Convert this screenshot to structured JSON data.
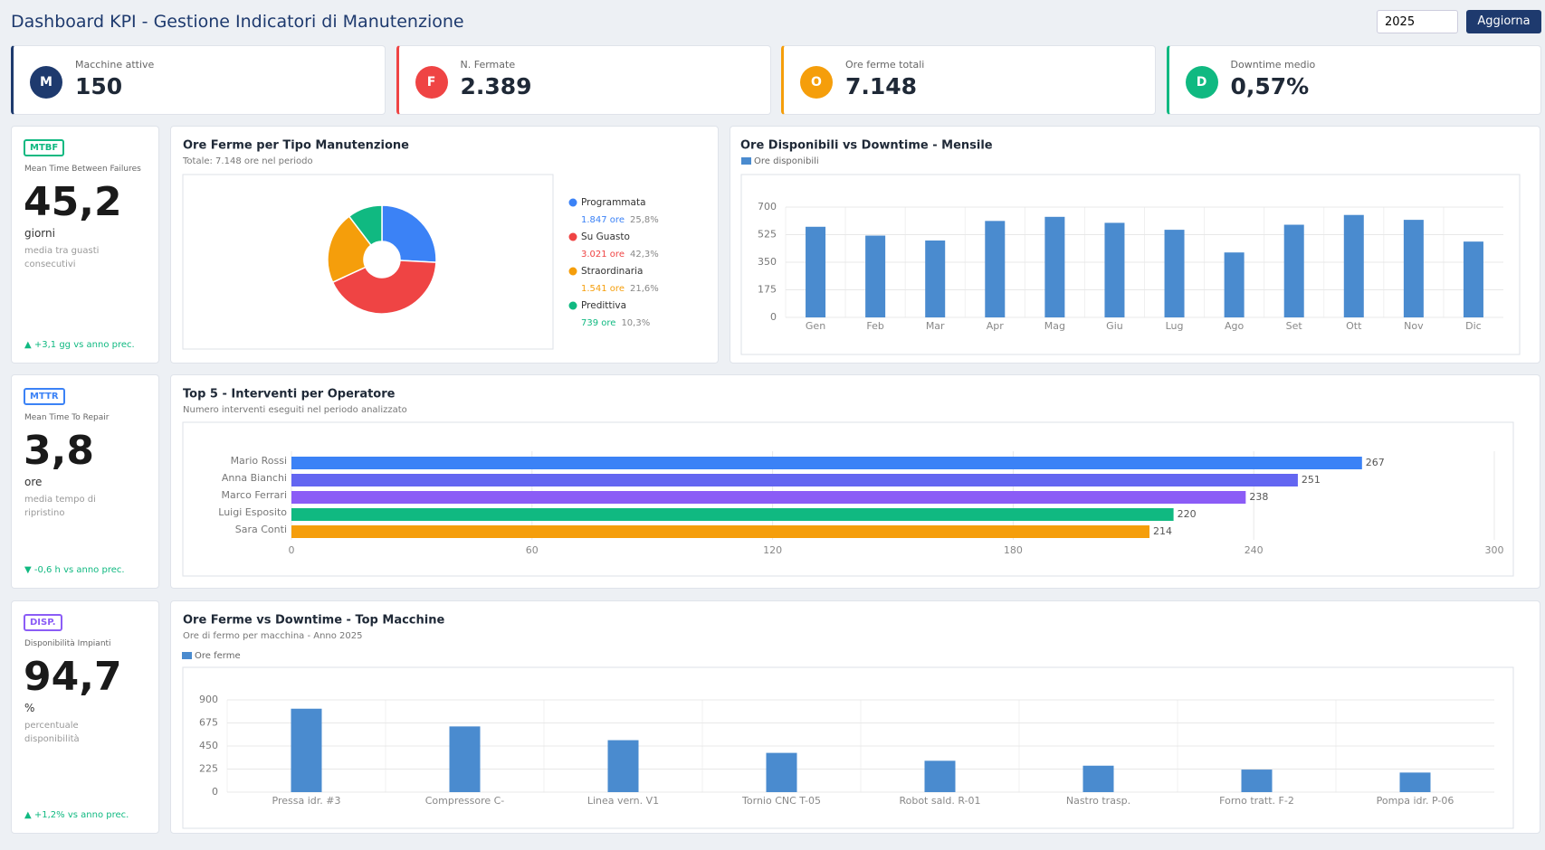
{
  "header": {
    "title": "Dashboard KPI - Gestione Indicatori di Manutenzione",
    "year": "2025",
    "button": "Aggiorna"
  },
  "kpis": [
    {
      "icon": "M",
      "label": "Macchine attive",
      "value": "150",
      "color": "#1e3a6e"
    },
    {
      "icon": "F",
      "label": "N. Fermate",
      "value": "2.389",
      "color": "#ef4444"
    },
    {
      "icon": "O",
      "label": "Ore ferme totali",
      "value": "7.148",
      "color": "#f59e0b"
    },
    {
      "icon": "D",
      "label": "Downtime medio",
      "value": "0,57%",
      "color": "#10b981"
    }
  ],
  "side_cards": [
    {
      "badge": "MTBF",
      "caption": "Mean Time Between Failures",
      "value": "45,2",
      "unit": "giorni",
      "description": "media tra guasti consecutivi",
      "trend": "▲ +3,1 gg vs anno prec.",
      "color": "#10b981"
    },
    {
      "badge": "MTTR",
      "caption": "Mean Time To Repair",
      "value": "3,8",
      "unit": "ore",
      "description": "media tempo di ripristino",
      "trend": "▼ -0,6 h vs anno prec.",
      "color": "#3b82f6"
    },
    {
      "badge": "DISP.",
      "caption": "Disponibilità Impianti",
      "value": "94,7",
      "unit": "%",
      "description": "percentuale disponibilità",
      "trend": "▲ +1,2% vs anno prec.",
      "color": "#8b5cf6"
    }
  ],
  "chart_data": [
    {
      "type": "pie",
      "title": "Ore Ferme per Tipo Manutenzione",
      "subtitle": "Totale: 7.148 ore nel periodo",
      "categories": [
        "Programmata",
        "Su Guasto",
        "Straordinaria",
        "Predittiva"
      ],
      "values": [
        1847,
        3021,
        1541,
        739
      ],
      "value_labels": [
        "1.847 ore",
        "3.021 ore",
        "1.541 ore",
        "739 ore"
      ],
      "shares": [
        {
          "value": 25.8,
          "label": "25,8%"
        },
        {
          "value": 42.3,
          "label": "42,3%"
        },
        {
          "value": 21.6,
          "label": "21,6%"
        },
        {
          "value": 10.3,
          "label": "10,3%"
        }
      ],
      "colors": [
        "#3b82f6",
        "#ef4444",
        "#f59e0b",
        "#10b981"
      ]
    },
    {
      "type": "bar",
      "title": "Ore Disponibili vs Downtime - Mensile",
      "categories": [
        "Gen",
        "Feb",
        "Mar",
        "Apr",
        "Mag",
        "Giu",
        "Lug",
        "Ago",
        "Set",
        "Ott",
        "Nov",
        "Dic"
      ],
      "series": [
        {
          "name": "Ore disponibili",
          "color": "#4a8bcf",
          "values": [
            575,
            519,
            488,
            612,
            638,
            600,
            556,
            412,
            588,
            650,
            619,
            481
          ]
        }
      ],
      "ylim": [
        0,
        700
      ],
      "yticks": [
        0,
        175,
        350,
        525,
        700
      ],
      "grid": true
    },
    {
      "type": "hbar",
      "title": "Top 5 - Interventi per Operatore",
      "subtitle": "Numero interventi eseguiti nel periodo analizzato",
      "categories": [
        "Mario Rossi",
        "Anna Bianchi",
        "Marco Ferrari",
        "Luigi Esposito",
        "Sara Conti"
      ],
      "values": [
        267,
        251,
        238,
        220,
        214
      ],
      "colors": [
        "#3b82f6",
        "#6366f1",
        "#8b5cf6",
        "#10b981",
        "#f59e0b"
      ],
      "xlim": [
        0,
        300
      ],
      "xticks": [
        0,
        60,
        120,
        180,
        240,
        300
      ],
      "grid": true
    },
    {
      "type": "bar",
      "title": "Ore Ferme vs Downtime - Top Macchine",
      "subtitle": "Ore di fermo per macchina - Anno 2025",
      "categories": [
        "Pressa idr. #3",
        "Compressore C-",
        "Linea vern. V1",
        "Tornio CNC T-05",
        "Robot sald. R-01",
        "Nastro trasp.",
        "Forno tratt. F-2",
        "Pompa idr. P-06"
      ],
      "series": [
        {
          "name": "Ore ferme",
          "color": "#4a8bcf",
          "values": [
            814,
            641,
            507,
            383,
            306,
            258,
            220,
            191
          ]
        }
      ],
      "ylim": [
        0,
        900
      ],
      "yticks": [
        0,
        225,
        450,
        675,
        900
      ],
      "grid": true
    }
  ]
}
